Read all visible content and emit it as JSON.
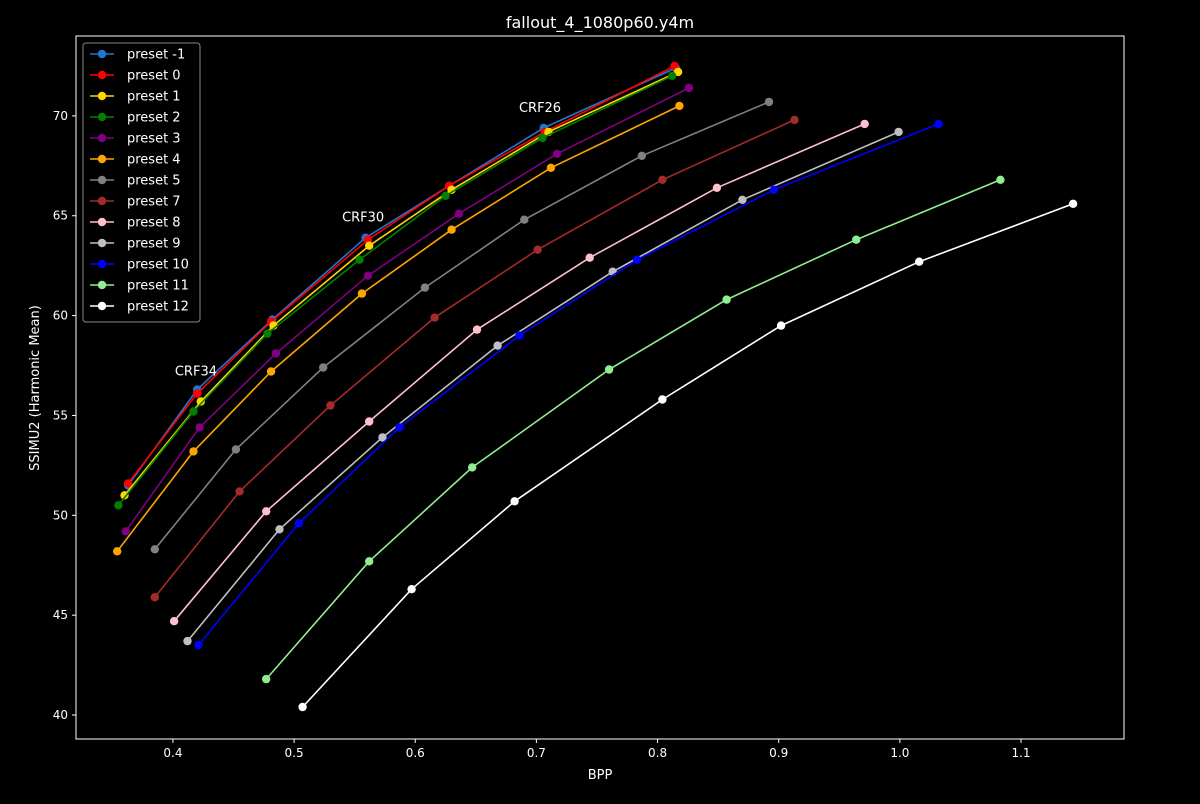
{
  "chart_data": {
    "type": "line",
    "title": "fallout_4_1080p60.y4m",
    "xlabel": "BPP",
    "ylabel": "SSIMU2 (Harmonic Mean)",
    "xlim": [
      0.32,
      1.185
    ],
    "ylim": [
      38.8,
      74.0
    ],
    "xticks": [
      0.4,
      0.5,
      0.6,
      0.7,
      0.8,
      0.9,
      1.0,
      1.1
    ],
    "xtick_labels": [
      "0.4",
      "0.5",
      "0.6",
      "0.7",
      "0.8",
      "0.9",
      "1.0",
      "1.1"
    ],
    "yticks": [
      40,
      45,
      50,
      55,
      60,
      65,
      70
    ],
    "ytick_labels": [
      "40",
      "45",
      "50",
      "55",
      "60",
      "65",
      "70"
    ],
    "grid": false,
    "legend_position": "top-left",
    "background": "#000000",
    "foreground": "#ffffff",
    "series": [
      {
        "name": "preset -1",
        "color": "#1f77d4",
        "x": [
          0.363,
          0.42,
          0.482,
          0.559,
          0.628,
          0.706,
          0.815
        ],
        "y": [
          51.5,
          56.3,
          59.8,
          63.9,
          66.5,
          69.4,
          72.4
        ]
      },
      {
        "name": "preset 0",
        "color": "#ff0000",
        "x": [
          0.363,
          0.42,
          0.481,
          0.561,
          0.628,
          0.707,
          0.814
        ],
        "y": [
          51.6,
          56.1,
          59.7,
          63.8,
          66.5,
          69.2,
          72.5
        ]
      },
      {
        "name": "preset 1",
        "color": "#ffd700",
        "x": [
          0.36,
          0.423,
          0.483,
          0.562,
          0.63,
          0.71,
          0.817
        ],
        "y": [
          51.0,
          55.7,
          59.5,
          63.5,
          66.3,
          69.2,
          72.2
        ]
      },
      {
        "name": "preset 2",
        "color": "#008000",
        "x": [
          0.355,
          0.417,
          0.478,
          0.554,
          0.625,
          0.705,
          0.812
        ],
        "y": [
          50.5,
          55.2,
          59.1,
          62.8,
          66.0,
          68.9,
          72.0
        ]
      },
      {
        "name": "preset 3",
        "color": "#800080",
        "x": [
          0.361,
          0.422,
          0.485,
          0.561,
          0.636,
          0.717,
          0.826
        ],
        "y": [
          49.2,
          54.4,
          58.1,
          62.0,
          65.1,
          68.1,
          71.4
        ]
      },
      {
        "name": "preset 4",
        "color": "#ffa500",
        "x": [
          0.354,
          0.417,
          0.481,
          0.556,
          0.63,
          0.712,
          0.818
        ],
        "y": [
          48.2,
          53.2,
          57.2,
          61.1,
          64.3,
          67.4,
          70.5
        ]
      },
      {
        "name": "preset 5",
        "color": "#808080",
        "x": [
          0.385,
          0.452,
          0.524,
          0.608,
          0.69,
          0.787,
          0.892
        ],
        "y": [
          48.3,
          53.3,
          57.4,
          61.4,
          64.8,
          68.0,
          70.7
        ]
      },
      {
        "name": "preset 7",
        "color": "#a52a2a",
        "x": [
          0.385,
          0.455,
          0.53,
          0.616,
          0.701,
          0.804,
          0.913
        ],
        "y": [
          45.9,
          51.2,
          55.5,
          59.9,
          63.3,
          66.8,
          69.8
        ]
      },
      {
        "name": "preset 8",
        "color": "#ffc0cb",
        "x": [
          0.401,
          0.477,
          0.562,
          0.651,
          0.744,
          0.849,
          0.971
        ],
        "y": [
          44.7,
          50.2,
          54.7,
          59.3,
          62.9,
          66.4,
          69.6
        ]
      },
      {
        "name": "preset 9",
        "color": "#c0c0c0",
        "x": [
          0.412,
          0.488,
          0.573,
          0.668,
          0.763,
          0.87,
          0.999
        ],
        "y": [
          43.7,
          49.3,
          53.9,
          58.5,
          62.2,
          65.8,
          69.2
        ]
      },
      {
        "name": "preset 10",
        "color": "#0000ff",
        "x": [
          0.421,
          0.504,
          0.587,
          0.686,
          0.783,
          0.896,
          1.032
        ],
        "y": [
          43.5,
          49.6,
          54.4,
          59.0,
          62.8,
          66.3,
          69.6
        ]
      },
      {
        "name": "preset 11",
        "color": "#90ee90",
        "x": [
          0.477,
          0.562,
          0.647,
          0.76,
          0.857,
          0.964,
          1.083
        ],
        "y": [
          41.8,
          47.7,
          52.4,
          57.3,
          60.8,
          63.8,
          66.8
        ]
      },
      {
        "name": "preset 12",
        "color": "#ffffff",
        "x": [
          0.507,
          0.597,
          0.682,
          0.804,
          0.902,
          1.016,
          1.143
        ],
        "y": [
          40.4,
          46.3,
          50.7,
          55.8,
          59.5,
          62.7,
          65.6
        ]
      }
    ],
    "annotations": [
      {
        "text": "CRF34",
        "x": 0.419,
        "y": 57.0
      },
      {
        "text": "CRF30",
        "x": 0.557,
        "y": 64.7
      },
      {
        "text": "CRF26",
        "x": 0.703,
        "y": 70.2
      }
    ]
  }
}
